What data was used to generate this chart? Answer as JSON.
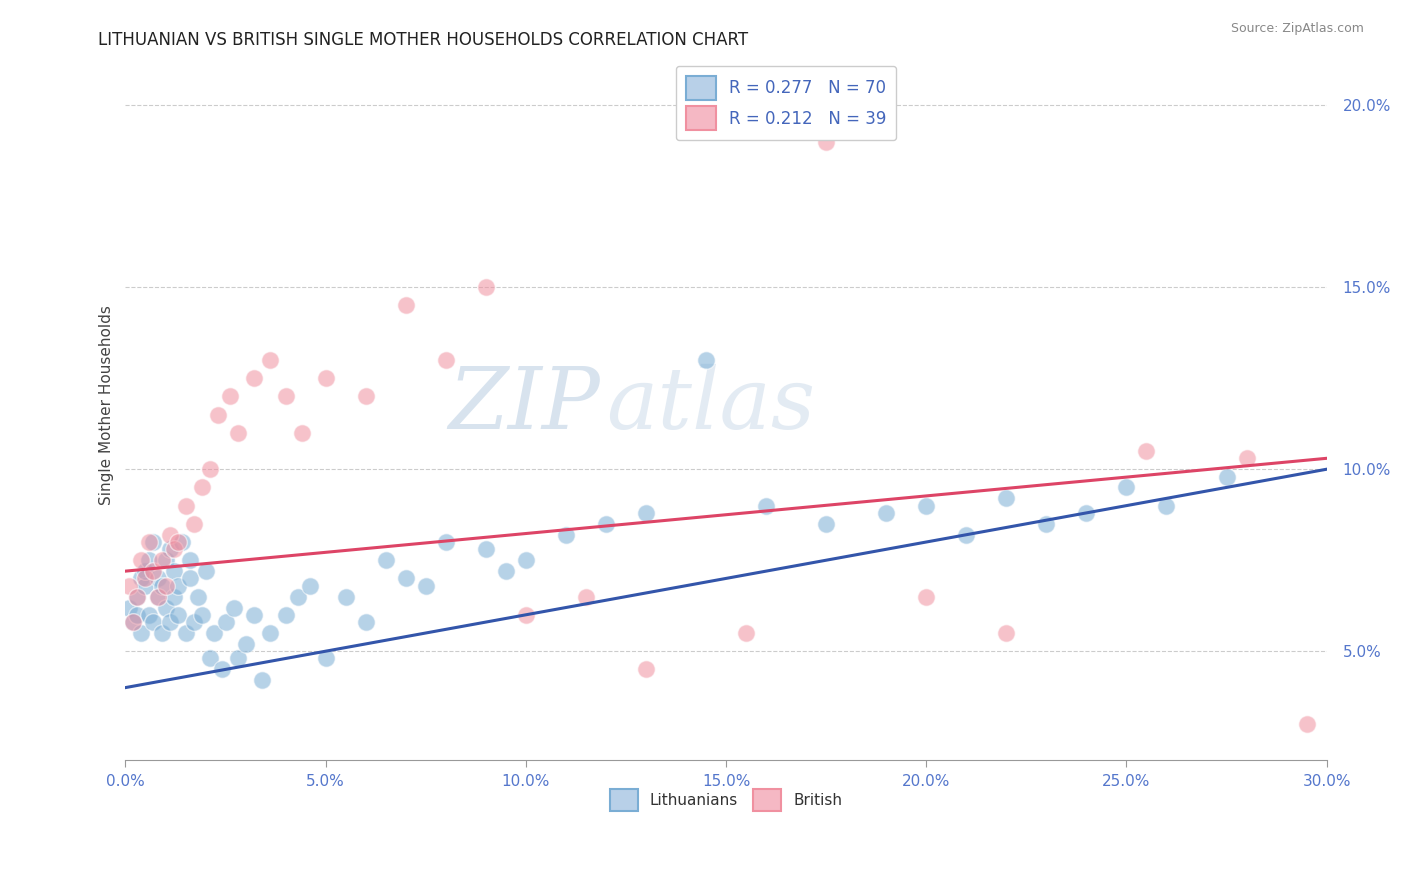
{
  "title": "LITHUANIAN VS BRITISH SINGLE MOTHER HOUSEHOLDS CORRELATION CHART",
  "source": "Source: ZipAtlas.com",
  "xlim": [
    0.0,
    0.3
  ],
  "ylim": [
    0.02,
    0.215
  ],
  "blue_color": "#7aadd4",
  "pink_color": "#f090a0",
  "blue_line_color": "#3355aa",
  "pink_line_color": "#dd4466",
  "blue_legend_fill": "#b8d0e8",
  "pink_legend_fill": "#f5b8c4",
  "watermark_zip": "ZIP",
  "watermark_atlas": "atlas",
  "lith_line_x0": 0.0,
  "lith_line_y0": 0.04,
  "lith_line_x1": 0.3,
  "lith_line_y1": 0.1,
  "brit_line_x0": 0.0,
  "brit_line_y0": 0.072,
  "brit_line_x1": 0.3,
  "brit_line_y1": 0.103,
  "lithuanians_x": [
    0.001,
    0.002,
    0.003,
    0.003,
    0.004,
    0.004,
    0.005,
    0.005,
    0.006,
    0.006,
    0.007,
    0.007,
    0.008,
    0.008,
    0.009,
    0.009,
    0.01,
    0.01,
    0.011,
    0.011,
    0.012,
    0.012,
    0.013,
    0.013,
    0.014,
    0.015,
    0.016,
    0.016,
    0.017,
    0.018,
    0.019,
    0.02,
    0.021,
    0.022,
    0.024,
    0.025,
    0.027,
    0.028,
    0.03,
    0.032,
    0.034,
    0.036,
    0.04,
    0.043,
    0.046,
    0.05,
    0.055,
    0.06,
    0.065,
    0.07,
    0.075,
    0.08,
    0.09,
    0.095,
    0.1,
    0.11,
    0.12,
    0.13,
    0.145,
    0.16,
    0.175,
    0.19,
    0.2,
    0.21,
    0.22,
    0.23,
    0.24,
    0.25,
    0.26,
    0.275
  ],
  "lithuanians_y": [
    0.062,
    0.058,
    0.065,
    0.06,
    0.07,
    0.055,
    0.068,
    0.072,
    0.06,
    0.075,
    0.058,
    0.08,
    0.065,
    0.07,
    0.055,
    0.068,
    0.075,
    0.062,
    0.058,
    0.078,
    0.065,
    0.072,
    0.06,
    0.068,
    0.08,
    0.055,
    0.07,
    0.075,
    0.058,
    0.065,
    0.06,
    0.072,
    0.048,
    0.055,
    0.045,
    0.058,
    0.062,
    0.048,
    0.052,
    0.06,
    0.042,
    0.055,
    0.06,
    0.065,
    0.068,
    0.048,
    0.065,
    0.058,
    0.075,
    0.07,
    0.068,
    0.08,
    0.078,
    0.072,
    0.075,
    0.082,
    0.085,
    0.088,
    0.13,
    0.09,
    0.085,
    0.088,
    0.09,
    0.082,
    0.092,
    0.085,
    0.088,
    0.095,
    0.09,
    0.098
  ],
  "british_x": [
    0.001,
    0.002,
    0.003,
    0.004,
    0.005,
    0.006,
    0.007,
    0.008,
    0.009,
    0.01,
    0.011,
    0.012,
    0.013,
    0.015,
    0.017,
    0.019,
    0.021,
    0.023,
    0.026,
    0.028,
    0.032,
    0.036,
    0.04,
    0.044,
    0.05,
    0.06,
    0.07,
    0.08,
    0.09,
    0.1,
    0.115,
    0.13,
    0.155,
    0.175,
    0.2,
    0.22,
    0.255,
    0.28,
    0.295
  ],
  "british_y": [
    0.068,
    0.058,
    0.065,
    0.075,
    0.07,
    0.08,
    0.072,
    0.065,
    0.075,
    0.068,
    0.082,
    0.078,
    0.08,
    0.09,
    0.085,
    0.095,
    0.1,
    0.115,
    0.12,
    0.11,
    0.125,
    0.13,
    0.12,
    0.11,
    0.125,
    0.12,
    0.145,
    0.13,
    0.15,
    0.06,
    0.065,
    0.045,
    0.055,
    0.19,
    0.065,
    0.055,
    0.105,
    0.103,
    0.03
  ]
}
